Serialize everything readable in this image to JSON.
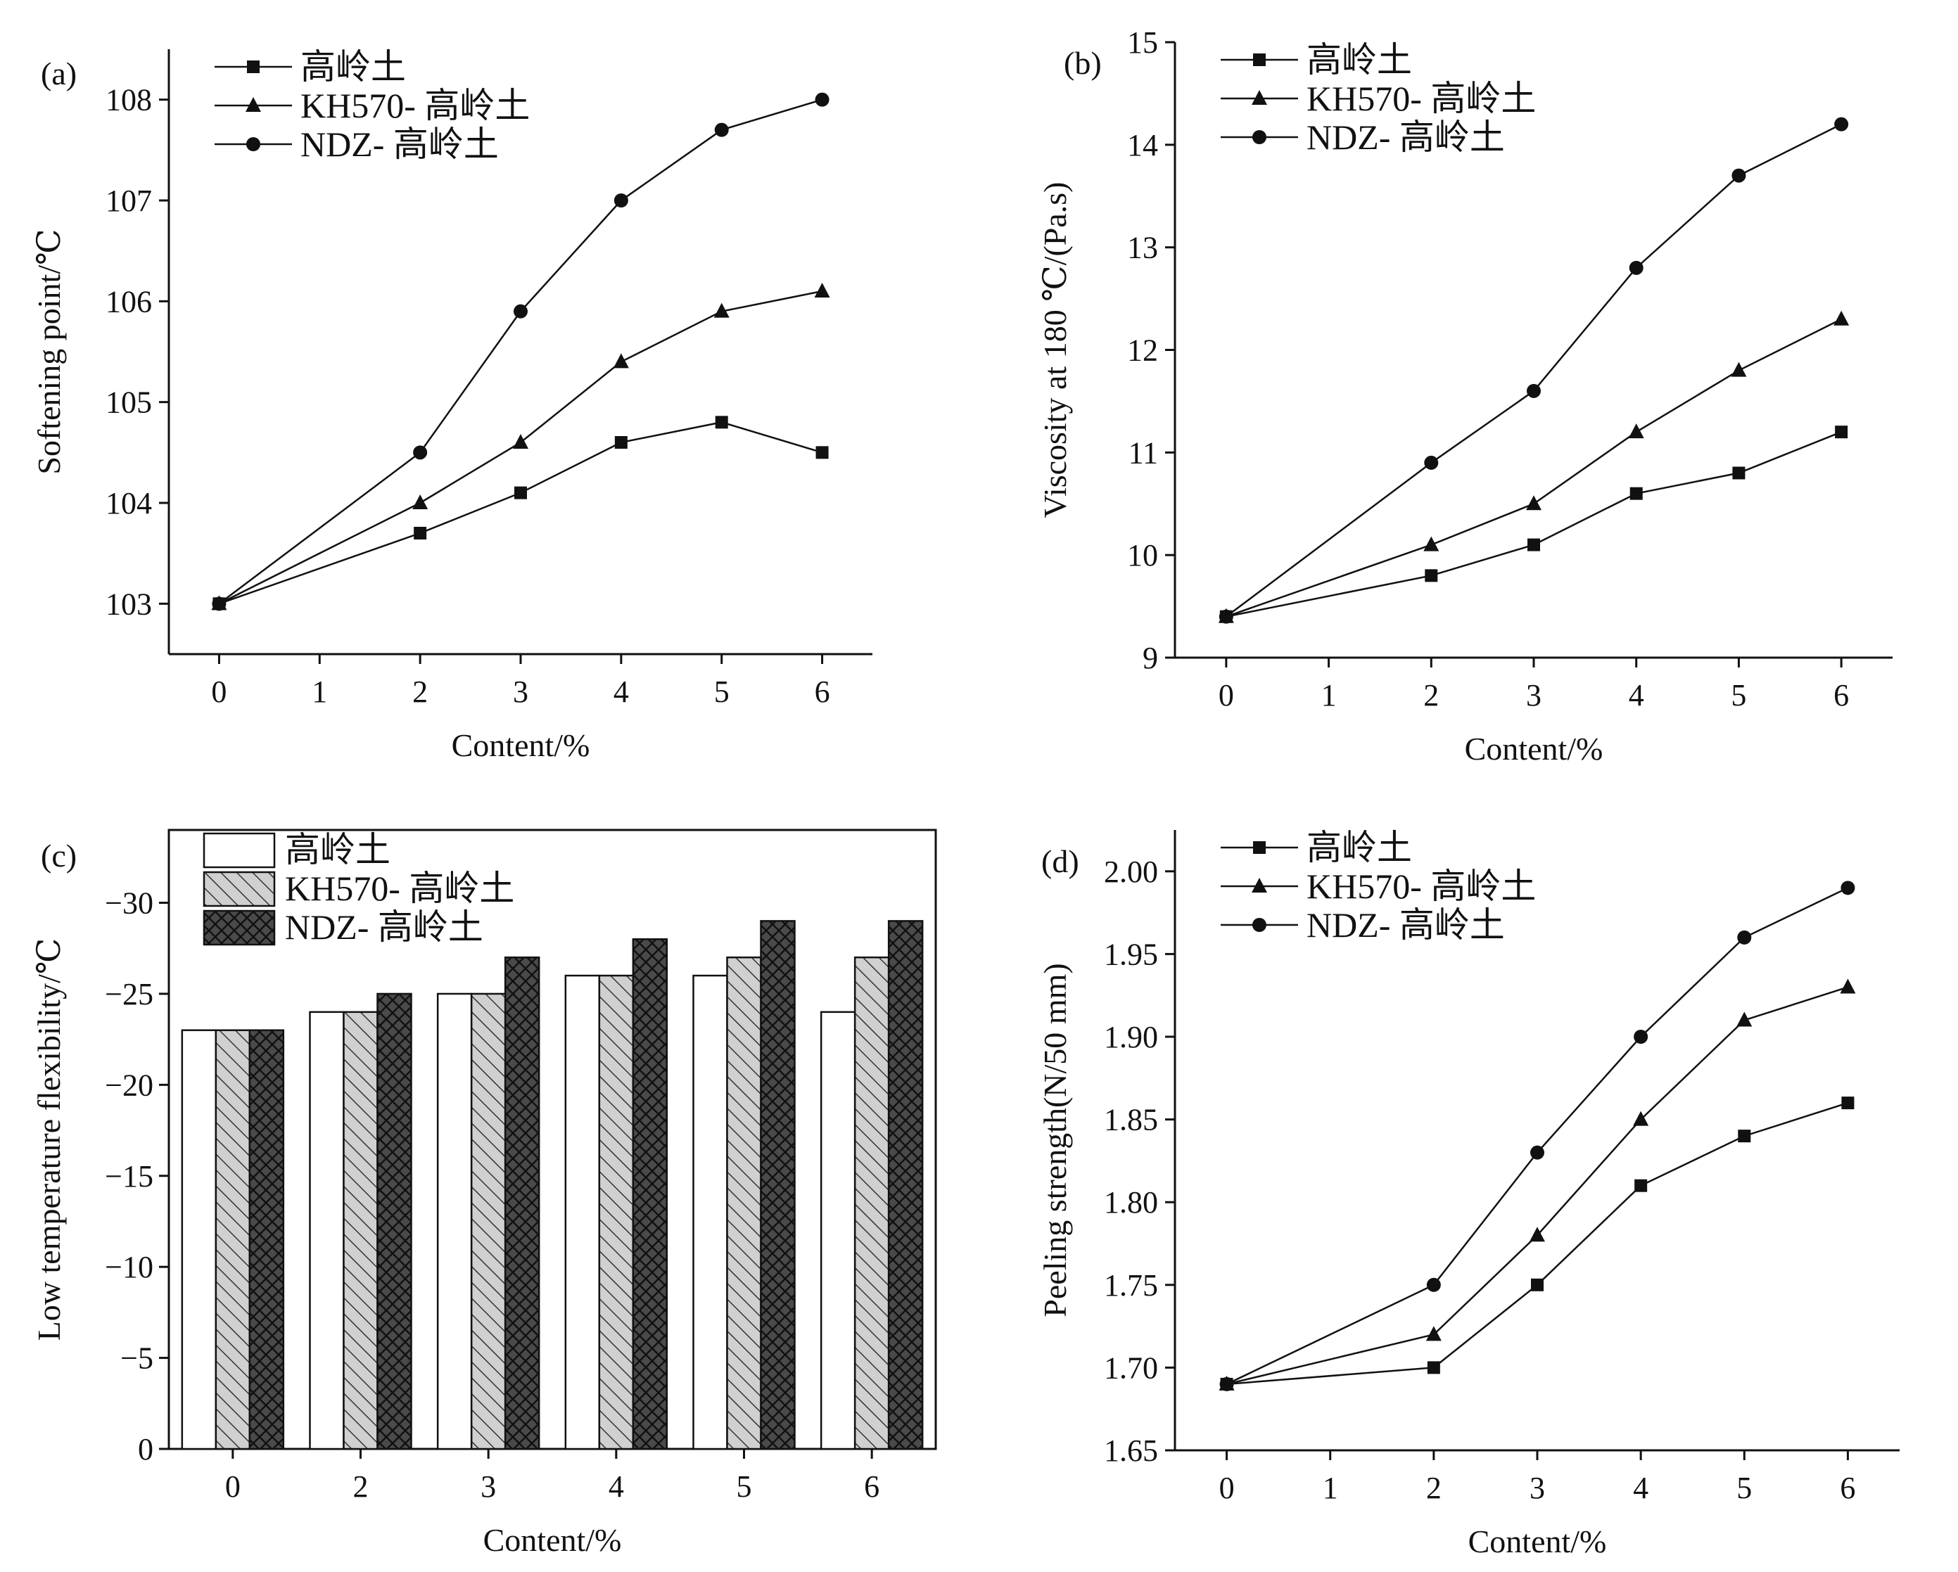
{
  "chart_data": [
    {
      "panel": "(a)",
      "type": "line",
      "x": [
        0,
        2,
        3,
        4,
        5,
        6
      ],
      "xlabel": "Content/%",
      "ylabel": "Softening point/℃",
      "xticks": [
        "0",
        "1",
        "2",
        "3",
        "4",
        "5",
        "6"
      ],
      "xlim": [
        -0.5,
        6.5
      ],
      "ylim": [
        102.5,
        108.5
      ],
      "yticks": [
        "103",
        "104",
        "105",
        "106",
        "107",
        "108"
      ],
      "legend_position": "top-left",
      "series": [
        {
          "name": "高岭土",
          "marker": "square",
          "values": [
            103,
            103.7,
            104.1,
            104.6,
            104.8,
            104.5
          ]
        },
        {
          "name": "KH570- 高岭土",
          "marker": "triangle",
          "values": [
            103,
            104.0,
            104.6,
            105.4,
            105.9,
            106.1
          ]
        },
        {
          "name": "NDZ- 高岭土",
          "marker": "circle",
          "values": [
            103,
            104.5,
            105.9,
            107.0,
            107.7,
            108.0
          ]
        }
      ]
    },
    {
      "panel": "(b)",
      "type": "line",
      "x": [
        0,
        2,
        3,
        4,
        5,
        6
      ],
      "xlabel": "Content/%",
      "ylabel": "Viscosity at 180 ℃/(Pa.s)",
      "xticks": [
        "0",
        "1",
        "2",
        "3",
        "4",
        "5",
        "6"
      ],
      "xlim": [
        -0.5,
        6.5
      ],
      "ylim": [
        9,
        15
      ],
      "yticks": [
        "9",
        "10",
        "11",
        "12",
        "13",
        "14",
        "15"
      ],
      "legend_position": "top-left",
      "series": [
        {
          "name": "高岭土",
          "marker": "square",
          "values": [
            9.4,
            9.8,
            10.1,
            10.6,
            10.8,
            11.2
          ]
        },
        {
          "name": "KH570- 高岭土",
          "marker": "triangle",
          "values": [
            9.4,
            10.1,
            10.5,
            11.2,
            11.8,
            12.3
          ]
        },
        {
          "name": "NDZ- 高岭土",
          "marker": "circle",
          "values": [
            9.4,
            10.9,
            11.6,
            12.8,
            13.7,
            14.2
          ]
        }
      ]
    },
    {
      "panel": "(c)",
      "type": "bar",
      "categories": [
        "0",
        "2",
        "3",
        "4",
        "5",
        "6"
      ],
      "xlabel": "Content/%",
      "ylabel": "Low temperature flexibility/℃",
      "ylim": [
        0,
        -34
      ],
      "yticks": [
        "0",
        "−5",
        "−10",
        "−15",
        "−20",
        "−25",
        "−30"
      ],
      "legend_position": "top-left",
      "series": [
        {
          "name": "高岭土",
          "pattern": "white",
          "values": [
            -23,
            -24,
            -25,
            -26,
            -26,
            -24
          ]
        },
        {
          "name": "KH570- 高岭土",
          "pattern": "diagonal-hatch",
          "values": [
            -23,
            -24,
            -25,
            -26,
            -27,
            -27
          ]
        },
        {
          "name": "NDZ- 高岭土",
          "pattern": "dark-crosshatch",
          "values": [
            -23,
            -25,
            -27,
            -28,
            -29,
            -29
          ]
        }
      ]
    },
    {
      "panel": "(d)",
      "type": "line",
      "x": [
        0,
        2,
        3,
        4,
        5,
        6
      ],
      "xlabel": "Content/%",
      "ylabel": "Peeling strength(N/50 mm)",
      "xticks": [
        "0",
        "1",
        "2",
        "3",
        "4",
        "5",
        "6"
      ],
      "xlim": [
        -0.5,
        6.5
      ],
      "ylim": [
        1.65,
        2.025
      ],
      "yticks": [
        "1.65",
        "1.70",
        "1.75",
        "1.80",
        "1.85",
        "1.90",
        "1.95",
        "2.00"
      ],
      "legend_position": "top-left",
      "series": [
        {
          "name": "高岭土",
          "marker": "square",
          "values": [
            1.69,
            1.7,
            1.75,
            1.81,
            1.84,
            1.86
          ]
        },
        {
          "name": "KH570- 高岭土",
          "marker": "triangle",
          "values": [
            1.69,
            1.72,
            1.78,
            1.85,
            1.91,
            1.93
          ]
        },
        {
          "name": "NDZ- 高岭土",
          "marker": "circle",
          "values": [
            1.69,
            1.75,
            1.83,
            1.9,
            1.96,
            1.99
          ]
        }
      ]
    }
  ]
}
